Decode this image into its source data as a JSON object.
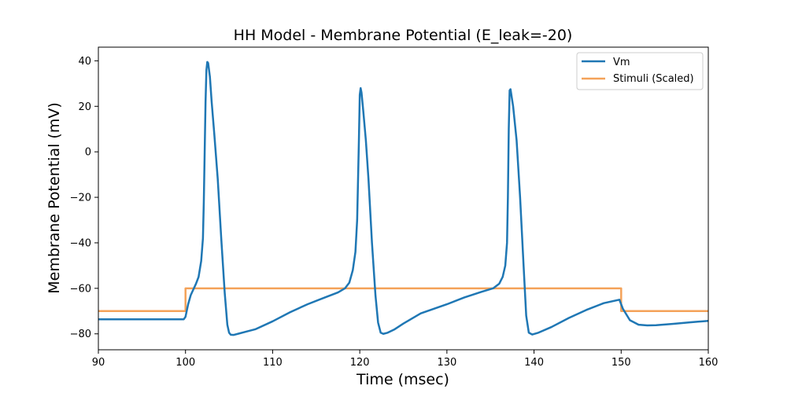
{
  "chart_data": {
    "type": "line",
    "title": "HH Model - Membrane Potential (E_leak=-20)",
    "xlabel": "Time (msec)",
    "ylabel": "Membrane Potential (mV)",
    "xlim": [
      90,
      160
    ],
    "ylim": [
      -87,
      46
    ],
    "xticks": [
      90,
      100,
      110,
      120,
      130,
      140,
      150,
      160
    ],
    "yticks": [
      40,
      20,
      0,
      -20,
      -40,
      -60,
      -80
    ],
    "xtick_labels": [
      "90",
      "100",
      "110",
      "120",
      "130",
      "140",
      "150",
      "160"
    ],
    "ytick_labels": [
      "40",
      "20",
      "0",
      "−20",
      "−40",
      "−60",
      "−80"
    ],
    "grid": false,
    "legend_position": "upper right",
    "series": [
      {
        "name": "Vm",
        "color": "#1f77b4",
        "x": [
          90,
          99.8,
          100,
          100.3,
          100.6,
          100.9,
          101.2,
          101.5,
          101.8,
          102.0,
          102.1,
          102.2,
          102.3,
          102.4,
          102.5,
          102.6,
          102.8,
          103.0,
          103.3,
          103.7,
          104.1,
          104.5,
          104.8,
          105.0,
          105.2,
          105.5,
          106.0,
          107.0,
          108.0,
          110.0,
          112.0,
          114.0,
          116.0,
          117.5,
          118.3,
          118.8,
          119.2,
          119.5,
          119.7,
          119.9,
          120.0,
          120.1,
          120.2,
          120.4,
          120.7,
          121.0,
          121.4,
          121.8,
          122.1,
          122.4,
          122.7,
          123.2,
          124.0,
          125.0,
          127.0,
          130.0,
          132.0,
          134.0,
          135.3,
          136.0,
          136.4,
          136.7,
          136.9,
          137.0,
          137.1,
          137.2,
          137.3,
          137.6,
          138.0,
          138.4,
          138.8,
          139.1,
          139.4,
          139.8,
          140.5,
          142.0,
          144.0,
          146.0,
          148.0,
          149.8,
          150.2,
          151.0,
          152.0,
          153.0,
          154.0,
          156.0,
          158.0,
          160.0
        ],
        "values": [
          -73.6,
          -73.6,
          -72.5,
          -67.0,
          -63.0,
          -60.5,
          -58.0,
          -55.0,
          -48.0,
          -38.0,
          -22.0,
          0.0,
          22.0,
          36.0,
          39.5,
          39.0,
          33.0,
          22.0,
          8.0,
          -12.0,
          -38.0,
          -62.0,
          -76.0,
          -79.5,
          -80.4,
          -80.5,
          -80.0,
          -79.0,
          -78.0,
          -74.5,
          -70.5,
          -67.0,
          -64.0,
          -61.8,
          -60.0,
          -57.5,
          -52.0,
          -44.0,
          -30.0,
          5.0,
          25.0,
          28.0,
          26.0,
          18.0,
          5.0,
          -12.0,
          -40.0,
          -63.0,
          -75.0,
          -79.5,
          -80.0,
          -79.5,
          -78.0,
          -75.5,
          -71.0,
          -67.0,
          -64.0,
          -61.5,
          -60.0,
          -58.0,
          -55.0,
          -50.0,
          -40.0,
          -20.0,
          10.0,
          27.0,
          27.5,
          20.0,
          5.0,
          -20.0,
          -50.0,
          -72.0,
          -79.5,
          -80.3,
          -79.5,
          -77.0,
          -73.0,
          -69.5,
          -66.5,
          -65.0,
          -69.0,
          -74.0,
          -76.0,
          -76.3,
          -76.2,
          -75.6,
          -74.9,
          -74.3
        ]
      },
      {
        "name": "Stimuli (Scaled)",
        "color": "#f4a259",
        "x": [
          90,
          100,
          100,
          150,
          150,
          160
        ],
        "values": [
          -70,
          -70,
          -60,
          -60,
          -70,
          -70
        ]
      }
    ]
  }
}
